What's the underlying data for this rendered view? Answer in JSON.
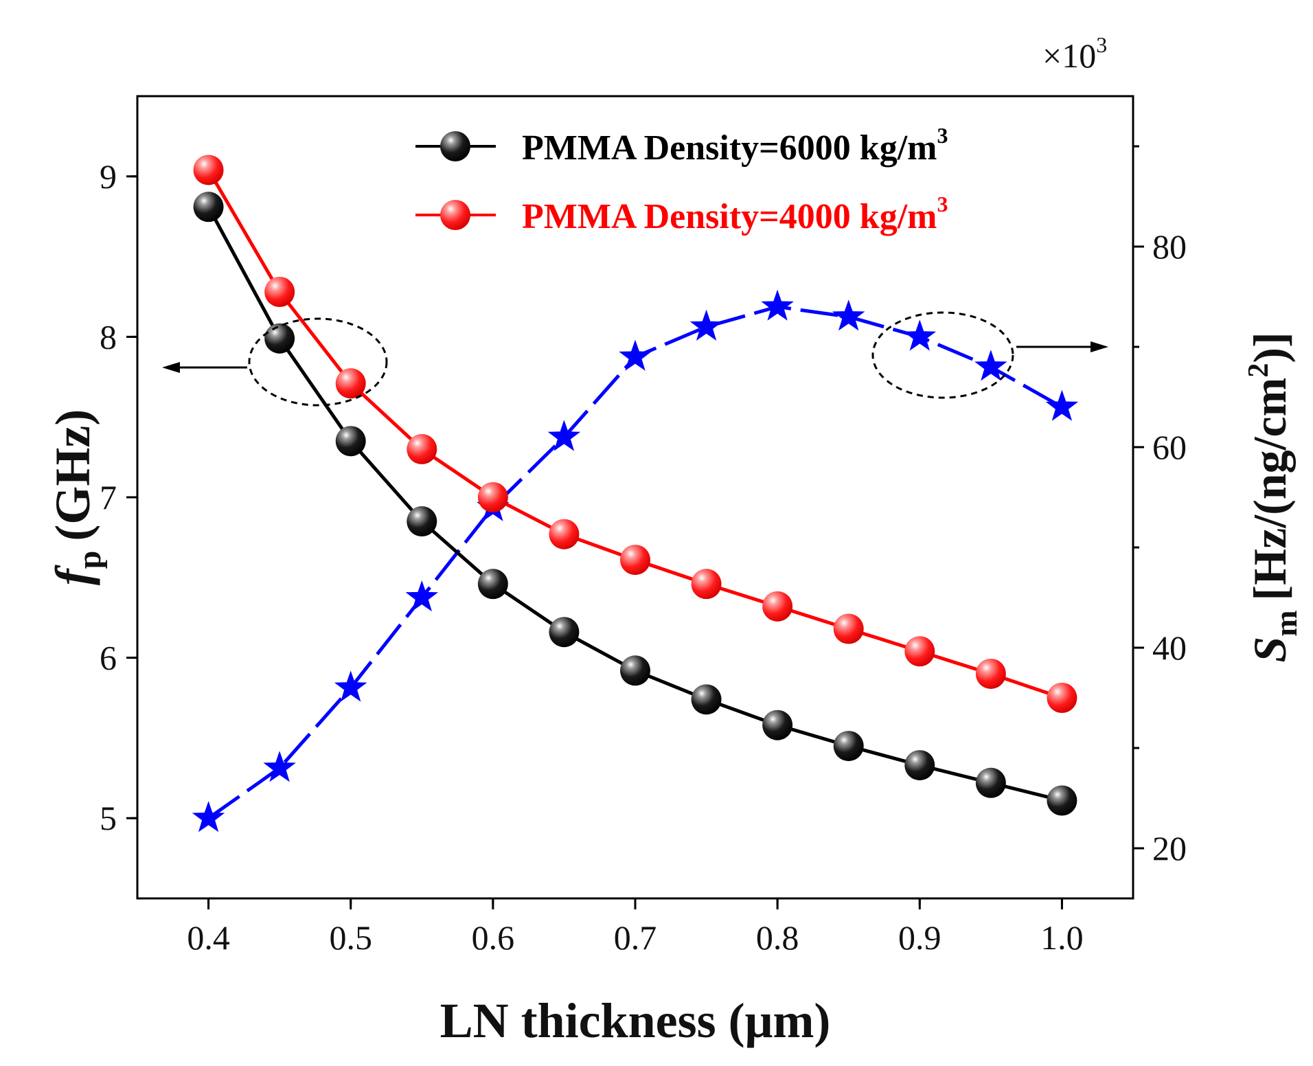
{
  "chart_data": {
    "type": "line",
    "xlabel": "LN thickness (μm)",
    "ylabel_left": {
      "symbol": "f",
      "subscript": "p",
      "unit": "(GHz)"
    },
    "ylabel_right": {
      "symbol": "S",
      "subscript": "m",
      "unit_before_sup": "[Hz/(ng/cm",
      "unit_sup": "2",
      "unit_after_sup": ")]"
    },
    "right_axis_multiplier": {
      "prefix": "×10",
      "exponent": "3"
    },
    "xlim": [
      0.35,
      1.05
    ],
    "ylim_left": [
      4.5,
      9.5
    ],
    "ylim_right": [
      15,
      95
    ],
    "x_ticks": [
      "0.4",
      "0.5",
      "0.6",
      "0.7",
      "0.8",
      "0.9",
      "1.0"
    ],
    "y_left_ticks": [
      "5",
      "6",
      "7",
      "8",
      "9"
    ],
    "y_right_ticks": [
      "20",
      "40",
      "60",
      "80"
    ],
    "x": [
      0.4,
      0.45,
      0.5,
      0.55,
      0.6,
      0.65,
      0.7,
      0.75,
      0.8,
      0.85,
      0.9,
      0.95,
      1.0
    ],
    "series": [
      {
        "name": "PMMA Density=6000 kg/m",
        "legend_sup": "3",
        "axis": "left",
        "color": "#000000",
        "marker": "sphere",
        "values": [
          8.81,
          7.99,
          7.35,
          6.85,
          6.46,
          6.16,
          5.92,
          5.74,
          5.58,
          5.45,
          5.33,
          5.22,
          5.11
        ]
      },
      {
        "name": "PMMA Density=4000 kg/m",
        "legend_sup": "3",
        "axis": "left",
        "color": "#ff0000",
        "marker": "sphere",
        "values": [
          9.04,
          8.28,
          7.71,
          7.3,
          7.0,
          6.77,
          6.61,
          6.46,
          6.32,
          6.18,
          6.04,
          5.9,
          5.75
        ]
      },
      {
        "name": "Sm",
        "axis": "right",
        "color": "#0000ff",
        "marker": "star",
        "linestyle": "dashed",
        "values": [
          23,
          28,
          36,
          45,
          54,
          61,
          69,
          72,
          74,
          73,
          71,
          68,
          64
        ]
      }
    ],
    "legend_position": "top-right",
    "annotations": [
      "dashed ellipse around black/red curves with arrow pointing to left axis",
      "dashed ellipse around blue curve with arrow pointing to right axis"
    ]
  }
}
